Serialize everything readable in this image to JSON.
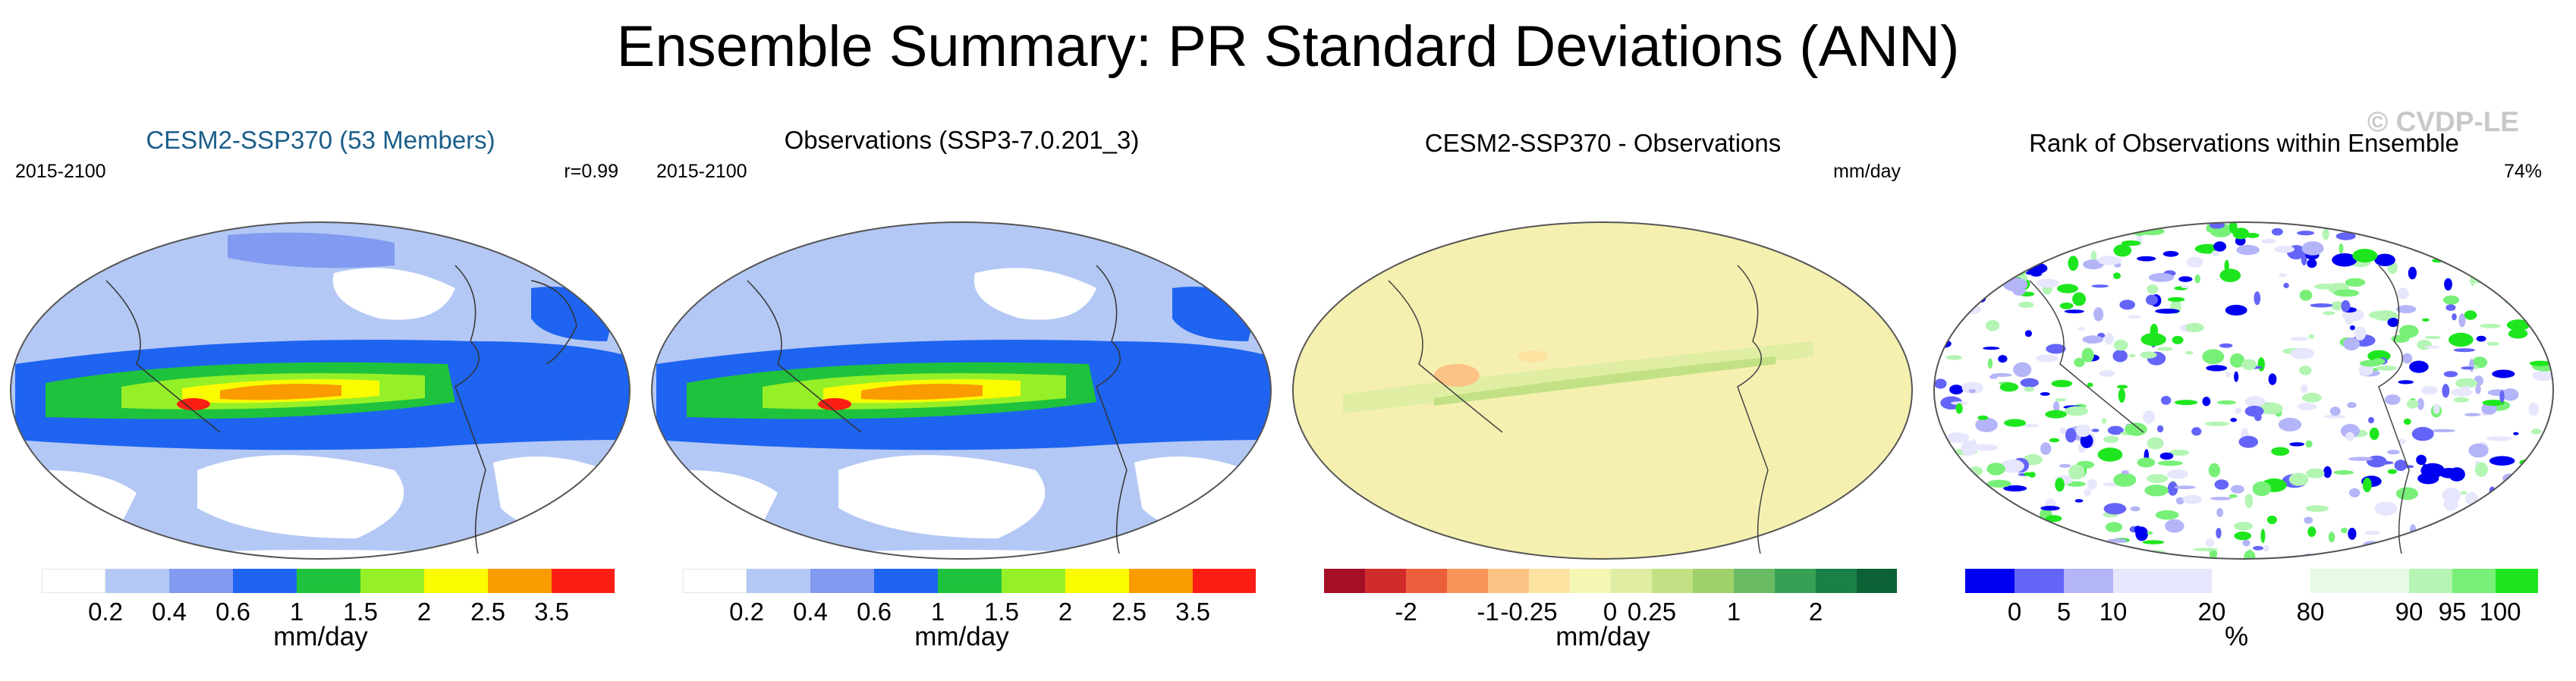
{
  "title": "Ensemble Summary: PR Standard Deviations (ANN)",
  "watermark": "© CVDP-LE",
  "panels": [
    {
      "title": "CESM2-SSP370 (53 Members)",
      "left_label": "2015-2100",
      "right_label": "r=0.99",
      "colorbar": {
        "colors": [
          "#ffffff",
          "#b4c8f5",
          "#829bf0",
          "#1e64f0",
          "#1ec23c",
          "#96f028",
          "#fafa00",
          "#fa9b00",
          "#fa1e14"
        ],
        "ticks": [
          "0.2",
          "0.4",
          "0.6",
          "1",
          "1.5",
          "2",
          "2.5",
          "3.5"
        ],
        "units": "mm/day"
      }
    },
    {
      "title": "Observations (SSP3-7.0.201_3)",
      "left_label": "2015-2100",
      "right_label": "",
      "colorbar": {
        "colors": [
          "#ffffff",
          "#b4c8f5",
          "#829bf0",
          "#1e64f0",
          "#1ec23c",
          "#96f028",
          "#fafa00",
          "#fa9b00",
          "#fa1e14"
        ],
        "ticks": [
          "0.2",
          "0.4",
          "0.6",
          "1",
          "1.5",
          "2",
          "2.5",
          "3.5"
        ],
        "units": "mm/day"
      }
    },
    {
      "title": "CESM2-SSP370 - Observations",
      "left_label": "",
      "right_label": "mm/day",
      "colorbar": {
        "colors": [
          "#a50f26",
          "#d02c2a",
          "#ec5e3c",
          "#f89458",
          "#fcc384",
          "#fde3a2",
          "#f5f5b4",
          "#e0eea4",
          "#c2e184",
          "#a0d26c",
          "#6abc64",
          "#36a154",
          "#198048",
          "#0c6234"
        ],
        "ticks": [
          "-2",
          "-1",
          "-0.25",
          "0",
          "0.25",
          "1",
          "2"
        ],
        "units": "mm/day"
      }
    },
    {
      "title": "Rank of Observations within Ensemble",
      "left_label": "",
      "right_label": "74%",
      "colorbar": {
        "colors": [
          "#0000f0",
          "#6464f8",
          "#b4b4f8",
          "#e6e6fc",
          "#ffffff",
          "#e6fae6",
          "#b4f5b4",
          "#78f078",
          "#1ee61e"
        ],
        "ticks": [
          "0",
          "5",
          "10",
          "20",
          "80",
          "90",
          "95",
          "100"
        ],
        "units": "%"
      }
    }
  ]
}
